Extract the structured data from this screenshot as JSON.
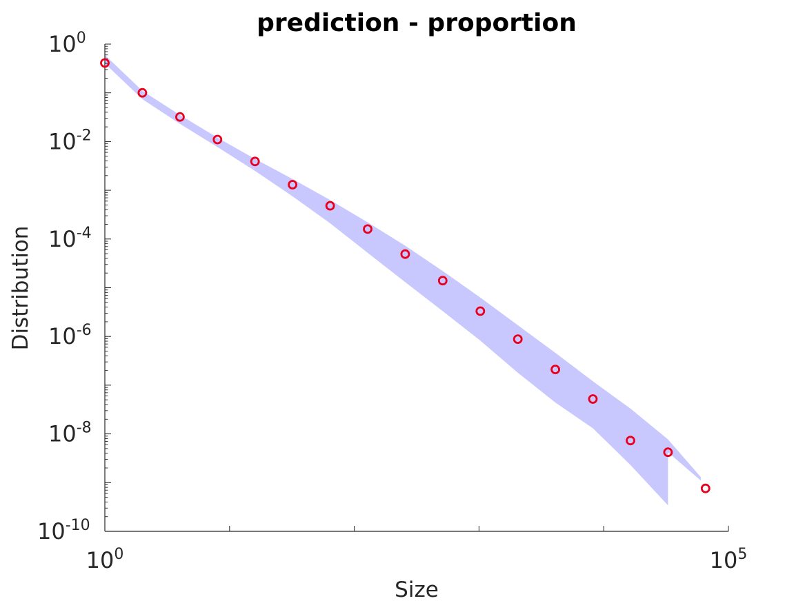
{
  "chart_data": {
    "type": "scatter",
    "title": "prediction - proportion",
    "xlabel": "Size",
    "ylabel": "Distribution",
    "xscale": "log",
    "yscale": "log",
    "xlim": [
      1,
      100000
    ],
    "ylim": [
      1e-10,
      1
    ],
    "grid": false,
    "x_tick_labels": [
      {
        "base": "10",
        "exp": "0"
      },
      {
        "base": "10",
        "exp": "5"
      }
    ],
    "y_tick_labels": [
      {
        "base": "10",
        "exp": "0"
      },
      {
        "base": "10",
        "exp": "-2"
      },
      {
        "base": "10",
        "exp": "-4"
      },
      {
        "base": "10",
        "exp": "-6"
      },
      {
        "base": "10",
        "exp": "-8"
      },
      {
        "base": "10",
        "exp": "-10"
      }
    ],
    "colors": {
      "points": "#e8001c",
      "band": "#c8c8ff",
      "axis": "#262626"
    },
    "points": [
      {
        "x": 1,
        "y": 0.41
      },
      {
        "x": 2,
        "y": 0.1
      },
      {
        "x": 4,
        "y": 0.032
      },
      {
        "x": 8,
        "y": 0.011
      },
      {
        "x": 16,
        "y": 0.0039
      },
      {
        "x": 32,
        "y": 0.0013
      },
      {
        "x": 64,
        "y": 0.00048
      },
      {
        "x": 128,
        "y": 0.00016
      },
      {
        "x": 256,
        "y": 4.9e-05
      },
      {
        "x": 512,
        "y": 1.4e-05
      },
      {
        "x": 1024,
        "y": 3.3e-06
      },
      {
        "x": 2048,
        "y": 8.8e-07
      },
      {
        "x": 4096,
        "y": 2.1e-07
      },
      {
        "x": 8192,
        "y": 5.2e-08
      },
      {
        "x": 16384,
        "y": 7.3e-09
      },
      {
        "x": 32768,
        "y": 4.2e-09
      },
      {
        "x": 65536,
        "y": 7.6e-10
      }
    ],
    "band": {
      "x": [
        1,
        2,
        4,
        8,
        16,
        32,
        64,
        128,
        256,
        512,
        1024,
        2048,
        4096,
        8192,
        16384,
        32768,
        32768,
        60000
      ],
      "upper": [
        0.6,
        0.11,
        0.035,
        0.012,
        0.0044,
        0.0017,
        0.00063,
        0.00022,
        7.3e-05,
        2.2e-05,
        6.3e-06,
        1.7e-06,
        4.6e-07,
        1.2e-07,
        3.3e-08,
        7.7e-09,
        7.7e-09,
        1.3e-09
      ],
      "lower": [
        0.4,
        0.074,
        0.023,
        0.0077,
        0.0025,
        0.00075,
        0.00021,
        5.2e-05,
        1.3e-05,
        3.3e-06,
        8.2e-07,
        1.8e-07,
        4.4e-08,
        1.3e-08,
        2.3e-09,
        3.4e-10,
        4.2e-09,
        1.1e-09
      ]
    }
  }
}
